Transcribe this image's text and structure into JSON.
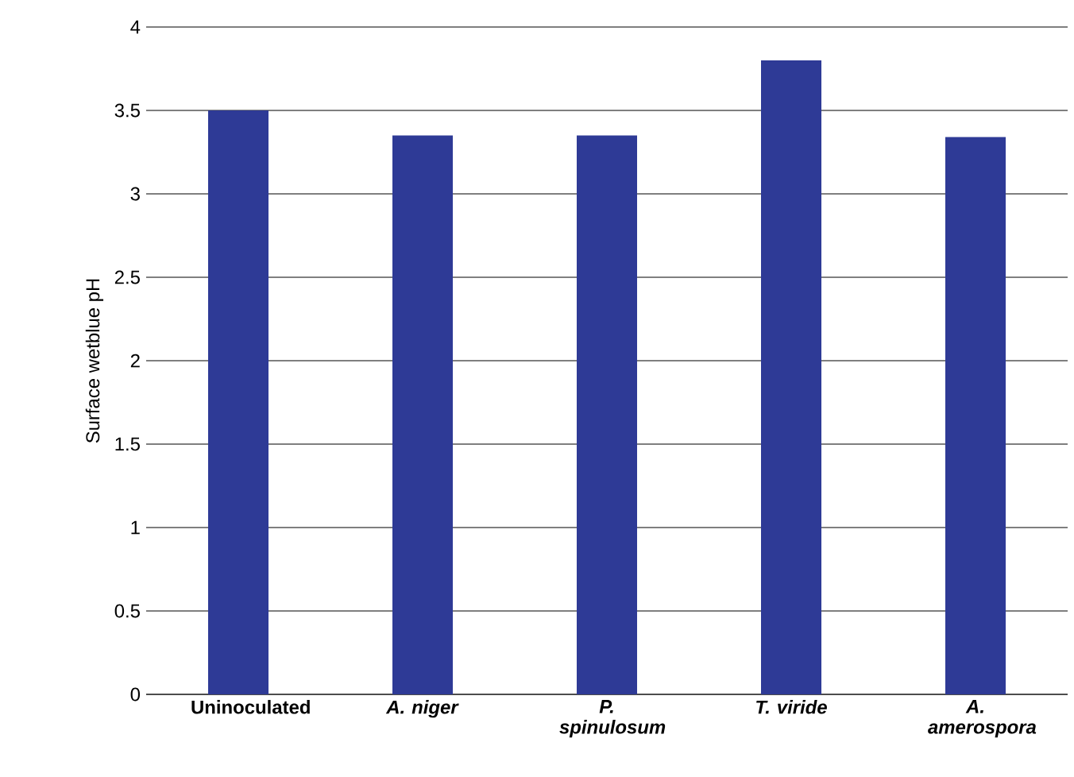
{
  "chart_data": {
    "type": "bar",
    "ylabel": "Surface wetblue pH",
    "categories": [
      "Uninoculated",
      "*A. niger*",
      "*P. spinulosum*",
      "*T. viride*",
      "*A. amerospora*"
    ],
    "values": [
      3.5,
      3.35,
      3.35,
      3.8,
      3.34
    ],
    "color": "#2e3a96",
    "ylim": [
      0,
      4
    ],
    "yticks": [
      0,
      0.5,
      1,
      1.5,
      2,
      2.5,
      3,
      3.5,
      4
    ],
    "grid": "y"
  }
}
